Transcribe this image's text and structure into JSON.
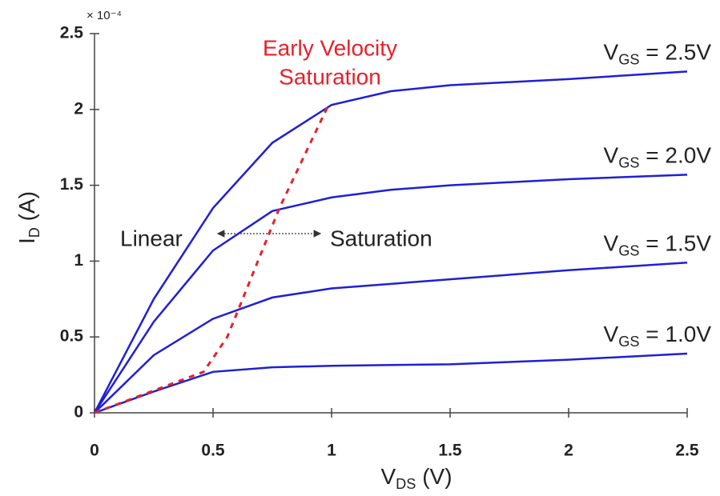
{
  "chart_data": {
    "type": "line",
    "xlabel": "VDS (V)",
    "ylabel": "ID (A)",
    "y_multiplier": "× 10⁻⁴",
    "x": [
      0,
      0.25,
      0.5,
      0.75,
      1,
      1.25,
      1.5,
      2,
      2.5
    ],
    "series": [
      {
        "name": "VGS = 2.5V",
        "color": "#1f1fd6",
        "values": [
          0,
          0.75,
          1.35,
          1.78,
          2.03,
          2.12,
          2.16,
          2.2,
          2.25
        ]
      },
      {
        "name": "VGS = 2.0V",
        "color": "#1f1fd6",
        "values": [
          0,
          0.6,
          1.07,
          1.33,
          1.42,
          1.47,
          1.5,
          1.54,
          1.57
        ]
      },
      {
        "name": "VGS = 1.5V",
        "color": "#1f1fd6",
        "values": [
          0,
          0.38,
          0.62,
          0.76,
          0.82,
          0.85,
          0.88,
          0.94,
          0.99
        ]
      },
      {
        "name": "VGS = 1.0V",
        "color": "#1f1fd6",
        "values": [
          0,
          0.14,
          0.27,
          0.3,
          0.31,
          0.315,
          0.32,
          0.35,
          0.39
        ]
      }
    ],
    "velocity_saturation": {
      "label": [
        "Early Velocity",
        "Saturation"
      ],
      "color": "#e8202a",
      "x": [
        0,
        0.46,
        0.56,
        0.78,
        0.99
      ],
      "values": [
        0,
        0.27,
        0.5,
        1.35,
        2.04
      ]
    },
    "region_labels": [
      "Linear",
      "Saturation"
    ],
    "xlim": [
      0,
      2.5
    ],
    "xticks": [
      0,
      0.5,
      1,
      1.5,
      2,
      2.5
    ],
    "ylim": [
      0,
      2.5
    ],
    "yticks": [
      0,
      0.5,
      1,
      1.5,
      2,
      2.5
    ],
    "grid": false
  }
}
